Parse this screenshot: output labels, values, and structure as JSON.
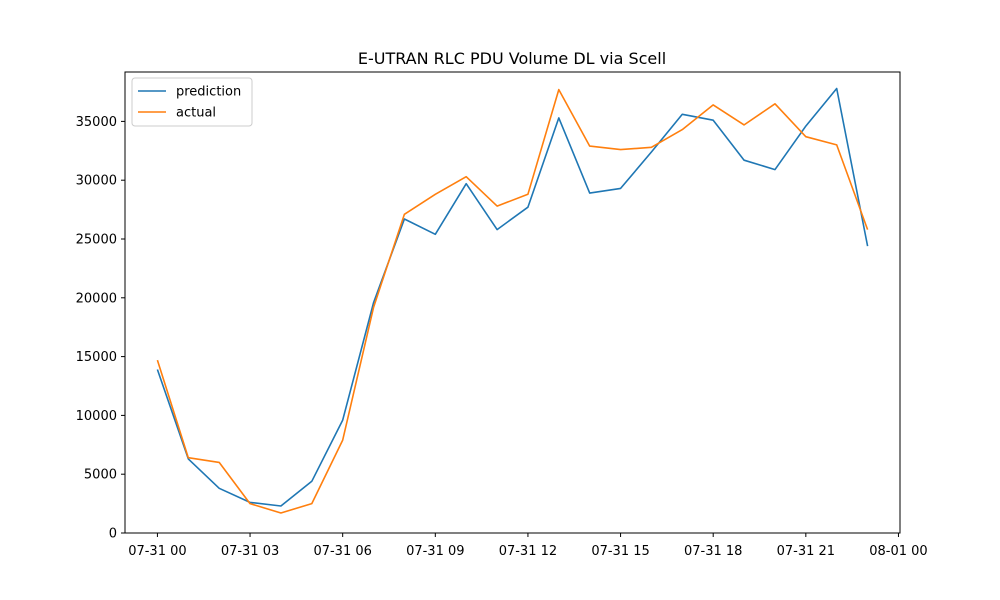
{
  "chart_data": {
    "type": "line",
    "title": "E-UTRAN RLC PDU Volume DL via Scell",
    "xlabel": "",
    "ylabel": "",
    "x_ticks": [
      "07-31 00",
      "07-31 03",
      "07-31 06",
      "07-31 09",
      "07-31 12",
      "07-31 15",
      "07-31 18",
      "07-31 21",
      "08-01 00"
    ],
    "y_ticks": [
      "0",
      "5000",
      "10000",
      "15000",
      "20000",
      "25000",
      "30000",
      "35000"
    ],
    "x_hours_range": [
      -1.05,
      24.05
    ],
    "ylim": [
      0,
      39200
    ],
    "grid": false,
    "legend_position": "top-left",
    "x": [
      "07-31 00:00",
      "07-31 01:00",
      "07-31 02:00",
      "07-31 03:00",
      "07-31 04:00",
      "07-31 05:00",
      "07-31 06:00",
      "07-31 07:00",
      "07-31 08:00",
      "07-31 09:00",
      "07-31 10:00",
      "07-31 11:00",
      "07-31 12:00",
      "07-31 13:00",
      "07-31 14:00",
      "07-31 15:00",
      "07-31 16:00",
      "07-31 17:00",
      "07-31 18:00",
      "07-31 19:00",
      "07-31 20:00",
      "07-31 21:00",
      "07-31 22:00",
      "07-31 23:00"
    ],
    "series": [
      {
        "name": "prediction",
        "color": "#1f77b4",
        "values": [
          13900,
          6300,
          3800,
          2600,
          2300,
          4400,
          9600,
          19600,
          26700,
          25400,
          29700,
          25800,
          27700,
          35300,
          28900,
          29300,
          32400,
          35600,
          35100,
          31700,
          30900,
          34600,
          37800,
          24400
        ]
      },
      {
        "name": "actual",
        "color": "#ff7f0e",
        "values": [
          14700,
          6400,
          6000,
          2500,
          1700,
          2500,
          7900,
          19200,
          27100,
          28800,
          30300,
          27800,
          28800,
          37700,
          32900,
          32600,
          32800,
          34300,
          36400,
          34700,
          36500,
          33700,
          33000,
          25800
        ]
      }
    ]
  }
}
